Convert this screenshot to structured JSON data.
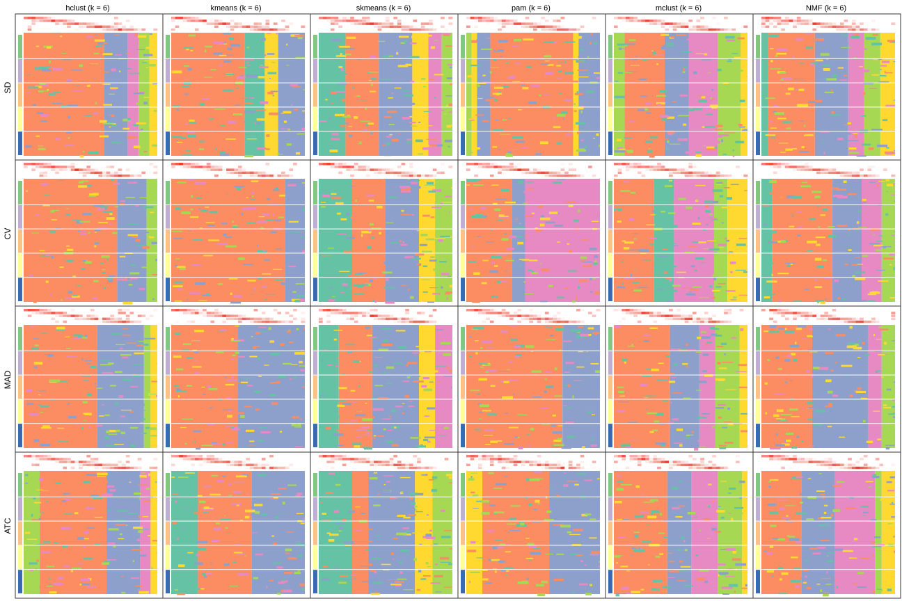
{
  "chart_data": {
    "type": "heatmap",
    "title": "",
    "column_labels": [
      "hclust (k = 6)",
      "kmeans (k = 6)",
      "skmeans (k = 6)",
      "pam (k = 6)",
      "mclust (k = 6)",
      "NMF (k = 6)"
    ],
    "row_labels": [
      "SD",
      "CV",
      "MAD",
      "ATC"
    ],
    "class_colors": [
      "#66C2A5",
      "#FC8D62",
      "#8DA0CB",
      "#E78AC3",
      "#A6D854",
      "#FFD92F"
    ],
    "annotation_colors": [
      "#7FC97F",
      "#BEAED4",
      "#FDC086",
      "#FFFF99",
      "#386CB0"
    ],
    "top_bar_colors": {
      "low": "#FFFFFF",
      "high": "#EF2D1E"
    },
    "panels": [
      [
        {
          "method": "hclust",
          "dominant": [
            [
              1,
              0.6
            ],
            [
              2,
              0.18
            ],
            [
              3,
              0.08
            ],
            [
              4,
              0.08
            ],
            [
              5,
              0.06
            ]
          ]
        },
        {
          "method": "kmeans",
          "dominant": [
            [
              1,
              0.55
            ],
            [
              0,
              0.15
            ],
            [
              5,
              0.1
            ],
            [
              2,
              0.2
            ]
          ]
        },
        {
          "method": "skmeans",
          "dominant": [
            [
              0,
              0.2
            ],
            [
              1,
              0.25
            ],
            [
              2,
              0.25
            ],
            [
              5,
              0.12
            ],
            [
              3,
              0.1
            ],
            [
              4,
              0.08
            ]
          ]
        },
        {
          "method": "pam",
          "dominant": [
            [
              4,
              0.04
            ],
            [
              5,
              0.04
            ],
            [
              2,
              0.1
            ],
            [
              1,
              0.62
            ],
            [
              5,
              0.04
            ],
            [
              2,
              0.16
            ]
          ]
        },
        {
          "method": "mclust",
          "dominant": [
            [
              4,
              0.08
            ],
            [
              1,
              0.3
            ],
            [
              2,
              0.18
            ],
            [
              3,
              0.22
            ],
            [
              4,
              0.17
            ],
            [
              5,
              0.05
            ]
          ]
        },
        {
          "method": "NMF",
          "dominant": [
            [
              0,
              0.05
            ],
            [
              1,
              0.35
            ],
            [
              2,
              0.25
            ],
            [
              3,
              0.12
            ],
            [
              4,
              0.12
            ],
            [
              5,
              0.11
            ]
          ]
        }
      ],
      [
        {
          "method": "hclust",
          "dominant": [
            [
              1,
              0.7
            ],
            [
              2,
              0.22
            ],
            [
              4,
              0.08
            ]
          ]
        },
        {
          "method": "kmeans",
          "dominant": [
            [
              1,
              0.85
            ],
            [
              2,
              0.15
            ]
          ]
        },
        {
          "method": "skmeans",
          "dominant": [
            [
              0,
              0.25
            ],
            [
              1,
              0.25
            ],
            [
              2,
              0.25
            ],
            [
              5,
              0.12
            ],
            [
              4,
              0.13
            ]
          ]
        },
        {
          "method": "pam",
          "dominant": [
            [
              1,
              0.34
            ],
            [
              2,
              0.1
            ],
            [
              3,
              0.56
            ]
          ]
        },
        {
          "method": "mclust",
          "dominant": [
            [
              1,
              0.3
            ],
            [
              0,
              0.15
            ],
            [
              3,
              0.3
            ],
            [
              4,
              0.1
            ],
            [
              5,
              0.15
            ]
          ]
        },
        {
          "method": "NMF",
          "dominant": [
            [
              0,
              0.08
            ],
            [
              1,
              0.45
            ],
            [
              2,
              0.22
            ],
            [
              3,
              0.15
            ],
            [
              4,
              0.1
            ]
          ]
        }
      ],
      [
        {
          "method": "hclust",
          "dominant": [
            [
              1,
              0.55
            ],
            [
              2,
              0.35
            ],
            [
              4,
              0.05
            ],
            [
              5,
              0.05
            ]
          ]
        },
        {
          "method": "kmeans",
          "dominant": [
            [
              1,
              0.5
            ],
            [
              2,
              0.5
            ]
          ]
        },
        {
          "method": "skmeans",
          "dominant": [
            [
              0,
              0.15
            ],
            [
              1,
              0.25
            ],
            [
              2,
              0.35
            ],
            [
              5,
              0.12
            ],
            [
              3,
              0.13
            ]
          ]
        },
        {
          "method": "pam",
          "dominant": [
            [
              1,
              0.72
            ],
            [
              2,
              0.28
            ]
          ]
        },
        {
          "method": "mclust",
          "dominant": [
            [
              1,
              0.42
            ],
            [
              2,
              0.22
            ],
            [
              3,
              0.12
            ],
            [
              4,
              0.18
            ],
            [
              5,
              0.06
            ]
          ]
        },
        {
          "method": "NMF",
          "dominant": [
            [
              1,
              0.38
            ],
            [
              2,
              0.42
            ],
            [
              3,
              0.1
            ],
            [
              4,
              0.1
            ]
          ]
        }
      ],
      [
        {
          "method": "hclust",
          "dominant": [
            [
              4,
              0.12
            ],
            [
              1,
              0.5
            ],
            [
              2,
              0.25
            ],
            [
              3,
              0.08
            ],
            [
              5,
              0.05
            ]
          ]
        },
        {
          "method": "kmeans",
          "dominant": [
            [
              0,
              0.2
            ],
            [
              1,
              0.4
            ],
            [
              2,
              0.4
            ]
          ]
        },
        {
          "method": "skmeans",
          "dominant": [
            [
              0,
              0.25
            ],
            [
              1,
              0.12
            ],
            [
              2,
              0.35
            ],
            [
              5,
              0.13
            ],
            [
              4,
              0.15
            ]
          ]
        },
        {
          "method": "pam",
          "dominant": [
            [
              5,
              0.12
            ],
            [
              1,
              0.5
            ],
            [
              2,
              0.38
            ]
          ]
        },
        {
          "method": "mclust",
          "dominant": [
            [
              1,
              0.4
            ],
            [
              2,
              0.18
            ],
            [
              3,
              0.2
            ],
            [
              4,
              0.18
            ],
            [
              5,
              0.04
            ]
          ]
        },
        {
          "method": "NMF",
          "dominant": [
            [
              1,
              0.3
            ],
            [
              2,
              0.25
            ],
            [
              3,
              0.3
            ],
            [
              4,
              0.05
            ],
            [
              5,
              0.1
            ]
          ]
        }
      ]
    ]
  }
}
